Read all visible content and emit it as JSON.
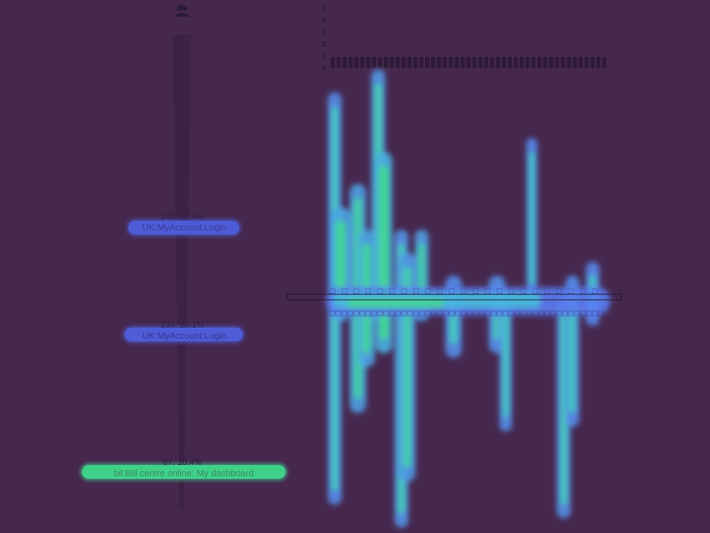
{
  "colors": {
    "background": "#46284f",
    "funnel_spine": "#3c2346",
    "node_low": "#4d5cd6",
    "node_high": "#3fd18a",
    "node_text_dark": "#3a2e8a",
    "heat_low": "#5a7cf0",
    "heat_mid": "#43c3d8",
    "heat_high": "#42e07d"
  },
  "icons": {
    "top": "users-icon"
  },
  "chart_data": [
    {
      "type": "funnel",
      "nodes": [
        {
          "count_label": "145: 22.4%",
          "name": "UK:MyAccount:Login",
          "count": 145,
          "percent": 22.4
        },
        {
          "count_label": "130: 20.1%",
          "name": "UK:MyAccount:Login",
          "count": 130,
          "percent": 20.1
        },
        {
          "count_label": "67: 10.4%",
          "name": "bil:Bill centre online: My dashboard",
          "count": 67,
          "percent": 10.4
        }
      ]
    },
    {
      "type": "heatmap",
      "y_ticks": [
        "0",
        "1",
        "2",
        "3",
        "4",
        "5"
      ],
      "ylim": [
        0,
        5
      ],
      "top_bar_count": 47,
      "blobs": [
        {
          "x": 0.04,
          "y0": 0.05,
          "y1": 0.95,
          "w": 10,
          "level": 0.3
        },
        {
          "x": 0.06,
          "y0": 0.3,
          "y1": 0.55,
          "w": 14,
          "level": 0.8
        },
        {
          "x": 0.12,
          "y0": 0.25,
          "y1": 0.75,
          "w": 12,
          "level": 0.6
        },
        {
          "x": 0.15,
          "y0": 0.35,
          "y1": 0.65,
          "w": 12,
          "level": 0.7
        },
        {
          "x": 0.19,
          "y0": 0.0,
          "y1": 0.55,
          "w": 10,
          "level": 0.5
        },
        {
          "x": 0.21,
          "y0": 0.18,
          "y1": 0.62,
          "w": 12,
          "level": 0.9
        },
        {
          "x": 0.27,
          "y0": 0.35,
          "y1": 1.0,
          "w": 10,
          "level": 0.4
        },
        {
          "x": 0.29,
          "y0": 0.4,
          "y1": 0.9,
          "w": 12,
          "level": 0.5
        },
        {
          "x": 0.34,
          "y0": 0.35,
          "y1": 0.55,
          "w": 10,
          "level": 0.6
        },
        {
          "x": 0.45,
          "y0": 0.45,
          "y1": 0.63,
          "w": 12,
          "level": 0.3
        },
        {
          "x": 0.6,
          "y0": 0.45,
          "y1": 0.62,
          "w": 12,
          "level": 0.35
        },
        {
          "x": 0.63,
          "y0": 0.48,
          "y1": 0.79,
          "w": 9,
          "level": 0.3
        },
        {
          "x": 0.72,
          "y0": 0.15,
          "y1": 0.5,
          "w": 8,
          "level": 0.25
        },
        {
          "x": 0.83,
          "y0": 0.5,
          "y1": 0.98,
          "w": 10,
          "level": 0.35
        },
        {
          "x": 0.86,
          "y0": 0.45,
          "y1": 0.78,
          "w": 10,
          "level": 0.3
        },
        {
          "x": 0.93,
          "y0": 0.42,
          "y1": 0.56,
          "w": 10,
          "level": 0.2
        }
      ]
    }
  ]
}
